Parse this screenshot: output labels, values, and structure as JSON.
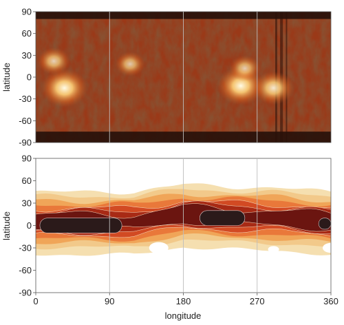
{
  "chart_data": [
    {
      "type": "heatmap",
      "panel": "top",
      "description_colormap": "dark brown to orange to bright yellow-white (intensity)",
      "ylabel": "latitude",
      "xlabel": "",
      "xlim": [
        0,
        360
      ],
      "ylim": [
        -90,
        90
      ],
      "yticks": [
        90,
        60,
        30,
        0,
        -30,
        -60,
        -90
      ],
      "xticks": [
        90,
        180,
        270
      ],
      "grid": "vertical lines at 90, 180, 270",
      "bright_regions": [
        {
          "lon": 35,
          "lat": -15,
          "intensity": 1.0
        },
        {
          "lon": 22,
          "lat": 22,
          "intensity": 0.55
        },
        {
          "lon": 115,
          "lat": 18,
          "intensity": 0.45
        },
        {
          "lon": 250,
          "lat": -12,
          "intensity": 1.0
        },
        {
          "lon": 290,
          "lat": -15,
          "intensity": 0.8
        },
        {
          "lon": 255,
          "lat": 12,
          "intensity": 0.5
        }
      ],
      "dark_bands": [
        {
          "lat_from": -75,
          "lat_to": -90
        },
        {
          "lat_from": 80,
          "lat_to": 90
        }
      ]
    },
    {
      "type": "heatmap",
      "panel": "bottom",
      "description_colormap": "filled contours: pale yellow (low) to orange to dark red to black (high)",
      "ylabel": "latitude",
      "xlabel": "longitude",
      "xlim": [
        0,
        360
      ],
      "ylim": [
        -90,
        90
      ],
      "yticks": [
        90,
        60,
        30,
        0,
        -30,
        -60,
        -90
      ],
      "xticks": [
        0,
        90,
        180,
        270,
        360
      ],
      "grid": "vertical lines at 90, 180, 270",
      "band_center_lat": [
        [
          0,
          5
        ],
        [
          60,
          5
        ],
        [
          120,
          5
        ],
        [
          180,
          15
        ],
        [
          240,
          12
        ],
        [
          300,
          10
        ],
        [
          360,
          5
        ]
      ],
      "peak_regions": [
        {
          "lon_from": 5,
          "lon_to": 105,
          "lat_from": -10,
          "lat_to": 10
        },
        {
          "lon_from": 200,
          "lon_to": 255,
          "lat_from": 0,
          "lat_to": 20
        },
        {
          "lon_from": 345,
          "lon_to": 360,
          "lat_from": -5,
          "lat_to": 10
        }
      ],
      "contour_colors": [
        "#f5dfb0",
        "#f2c98a",
        "#f0a558",
        "#e9783a",
        "#d24a23",
        "#a82a15",
        "#6b1510",
        "#2b1a1a"
      ]
    }
  ]
}
